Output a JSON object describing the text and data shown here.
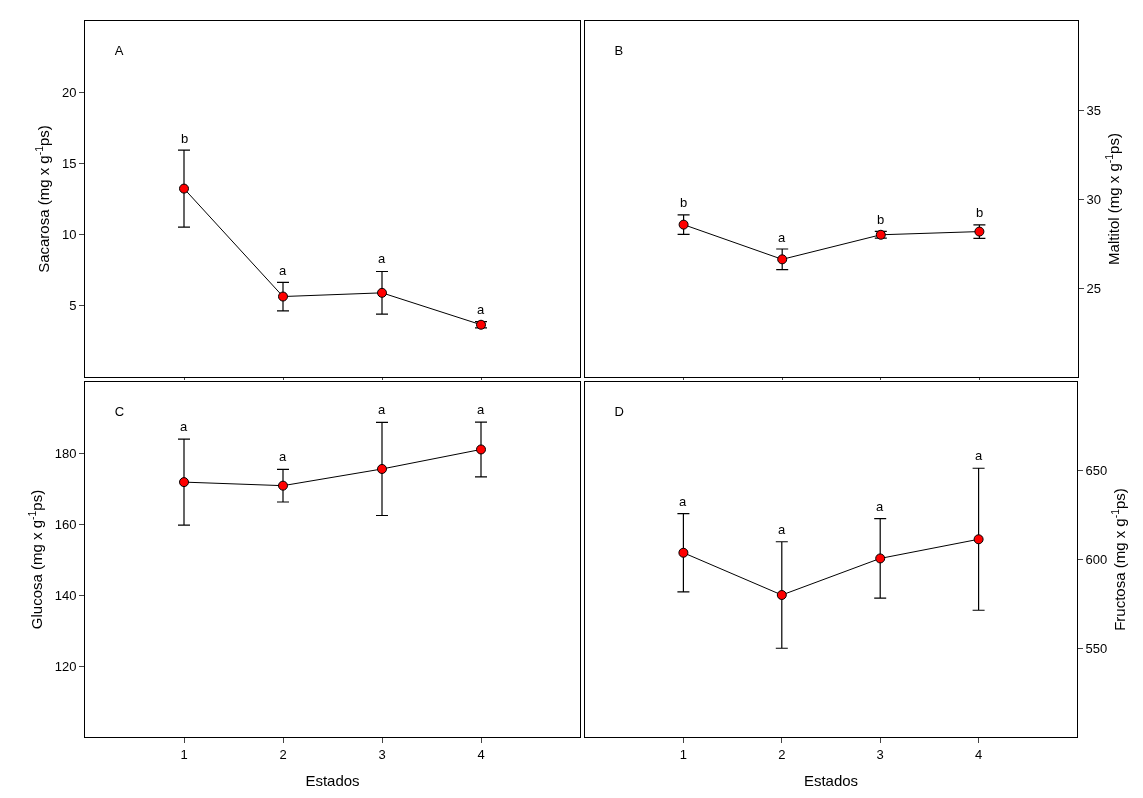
{
  "chart_data": [
    {
      "type": "line",
      "title": "A",
      "ylabel": "Sacarosa (mg x g$^{-1}$ps)",
      "x": [
        1,
        2,
        3,
        4
      ],
      "xlim": [
        0,
        5
      ],
      "xticks": [
        1,
        2,
        3,
        4
      ],
      "ylim": [
        0,
        25
      ],
      "yticks": [
        5,
        10,
        15,
        20
      ],
      "tick_labels": "y",
      "marker": "circle",
      "line_style": "solid",
      "series": [
        {
          "color": "#ff0000",
          "values": [
            13.23,
            5.65,
            5.91,
            3.67
          ],
          "errors": [
            2.7,
            1.0,
            1.5,
            0.22
          ]
        }
      ],
      "annotations": [
        {
          "text": "b",
          "x": 1,
          "y": 15.86
        },
        {
          "text": "a",
          "x": 2,
          "y": 6.62
        },
        {
          "text": "a",
          "x": 3,
          "y": 7.42
        },
        {
          "text": "a",
          "x": 4,
          "y": 3.88
        }
      ]
    },
    {
      "type": "line",
      "title": "B",
      "ylabel": "Maltitol (mg x g$^{-1}$ps)",
      "x": [
        1,
        2,
        3,
        4
      ],
      "xlim": [
        0,
        5
      ],
      "xticks": [
        1,
        2,
        3,
        4
      ],
      "ylim": [
        20,
        40
      ],
      "yticks": [
        25,
        30,
        35
      ],
      "tick_labels": "y",
      "marker": "circle",
      "line_style": "solid",
      "series": [
        {
          "color": "#ff0000",
          "values": [
            28.56,
            26.61,
            27.99,
            28.17
          ],
          "errors": [
            0.55,
            0.58,
            0.19,
            0.38
          ]
        }
      ],
      "annotations": [
        {
          "text": "b",
          "x": 1,
          "y": 29.09
        },
        {
          "text": "a",
          "x": 2,
          "y": 27.16
        },
        {
          "text": "b",
          "x": 3,
          "y": 28.17
        },
        {
          "text": "b",
          "x": 4,
          "y": 28.54
        }
      ]
    },
    {
      "type": "line",
      "title": "C",
      "xlabel": "Estados",
      "ylabel": "Glucosa (mg x g$^{-1}$ps)",
      "x": [
        1,
        2,
        3,
        4
      ],
      "xlim": [
        0,
        5
      ],
      "xticks": [
        1,
        2,
        3,
        4
      ],
      "ylim": [
        100,
        200
      ],
      "yticks": [
        120,
        140,
        160,
        180
      ],
      "marker": "circle",
      "line_style": "solid",
      "series": [
        {
          "color": "#ff0000",
          "values": [
            171.8,
            170.8,
            175.5,
            181.0
          ],
          "errors": [
            12.1,
            4.6,
            13.1,
            7.7
          ]
        }
      ],
      "annotations": [
        {
          "text": "a",
          "x": 1,
          "y": 183.9
        },
        {
          "text": "a",
          "x": 2,
          "y": 175.4
        },
        {
          "text": "a",
          "x": 3,
          "y": 188.6
        },
        {
          "text": "a",
          "x": 4,
          "y": 188.7
        }
      ]
    },
    {
      "type": "line",
      "title": "D",
      "xlabel": "Estados",
      "ylabel": "Fructosa (mg x g$^{-1}$ps)",
      "x": [
        1,
        2,
        3,
        4
      ],
      "xlim": [
        0,
        5
      ],
      "xticks": [
        1,
        2,
        3,
        4
      ],
      "ylim": [
        500,
        700
      ],
      "yticks": [
        550,
        600,
        650
      ],
      "marker": "circle",
      "line_style": "solid",
      "series": [
        {
          "color": "#ff0000",
          "values": [
            603.8,
            580,
            600.6,
            611.4
          ],
          "errors": [
            22,
            30,
            22.4,
            40
          ]
        }
      ],
      "annotations": [
        {
          "text": "a",
          "x": 1,
          "y": 625.8
        },
        {
          "text": "a",
          "x": 2,
          "y": 610
        },
        {
          "text": "a",
          "x": 3,
          "y": 623
        },
        {
          "text": "a",
          "x": 4,
          "y": 651.4
        }
      ]
    }
  ]
}
